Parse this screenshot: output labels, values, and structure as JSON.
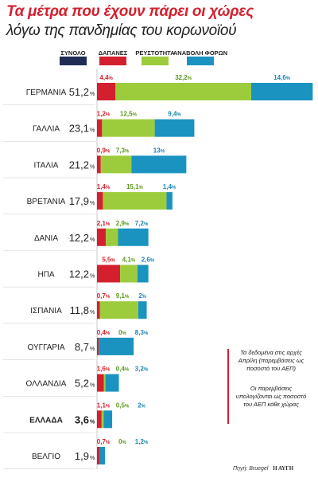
{
  "title_line1": "Τα μέτρα που έχουν πάρει οι χώρες",
  "title_line2": "λόγω της πανδημίας του κορωνοϊού",
  "colors": {
    "total": "#1f2d56",
    "spending": "#d4202e",
    "liquidity": "#9ccc3c",
    "tax_deferral": "#1a93c0",
    "pct_red": "#d4202e",
    "pct_green": "#5a9a1c",
    "pct_blue": "#1a86b3"
  },
  "legend": {
    "total": "ΣΥΝΟΛΟ",
    "spending": "ΔΑΠΑΝΕΣ",
    "liquidity": "ΡΕΥΣΤΟΤΗΤΑ",
    "tax_deferral": "ΑΝΑΒΟΛΗ ΦΟΡΩΝ"
  },
  "note_line1": "Τα δεδομένα στις αρχές Απρίλη (παρεμβάσεις ως ποσοστό του ΑΕΠ)",
  "note_line2": "Οι παρεμβάσεις υπολογίζονται ως ποσοστό του ΑΕΠ κάθε χώρας",
  "source": "Πηγή: Bruegel",
  "publisher": "Η ΑΥΓΗ",
  "chart_data": {
    "type": "bar",
    "stacked": true,
    "orientation": "horizontal",
    "unit": "%",
    "categories": [
      "ΓΕΡΜΑΝΙΑ",
      "ΓΑΛΛΙΑ",
      "ΙΤΑΛΙΑ",
      "ΒΡΕΤΑΝΙΑ",
      "ΔΑΝΙΑ",
      "ΗΠΑ",
      "ΙΣΠΑΝΙΑ",
      "ΟΥΓΓΑΡΙΑ",
      "ΟΛΛΑΝΔΙΑ",
      "ΕΛΛΑΔΑ",
      "ΒΕΛΓΙΟ"
    ],
    "highlight": "ΕΛΛΑΔΑ",
    "totals": [
      "51,2",
      "23,1",
      "21,2",
      "17,9",
      "12,2",
      "12,2",
      "11,8",
      "8,7",
      "5,2",
      "3,6",
      "1,9"
    ],
    "series": [
      {
        "name": "ΔΑΠΑΝΕΣ",
        "values": [
          4.4,
          1.2,
          0.9,
          1.4,
          2.1,
          5.5,
          0.7,
          0.4,
          1.6,
          1.1,
          0.7
        ],
        "labels": [
          "4,4",
          "1,2",
          "0,9",
          "1,4",
          "2,1",
          "5,5",
          "0,7",
          "0,4",
          "1,6",
          "1,1",
          "0,7"
        ]
      },
      {
        "name": "ΡΕΥΣΤΟΤΗΤΑ",
        "values": [
          32.2,
          12.5,
          7.3,
          15.1,
          2.9,
          4.1,
          9.1,
          0,
          0.4,
          0.5,
          0
        ],
        "labels": [
          "32,2",
          "12,5",
          "7,3",
          "15,1",
          "2,9",
          "4,1",
          "9,1",
          "0",
          "0,4",
          "0,5",
          "0"
        ]
      },
      {
        "name": "ΑΝΑΒΟΛΗ ΦΟΡΩΝ",
        "values": [
          14.6,
          9.4,
          13,
          1.4,
          7.2,
          2.6,
          2,
          8.3,
          3.2,
          2,
          1.2
        ],
        "labels": [
          "14,6",
          "9,4",
          "13",
          "1,4",
          "7,2",
          "2,6",
          "2",
          "8,3",
          "3,2",
          "2",
          "1,2"
        ]
      }
    ]
  }
}
